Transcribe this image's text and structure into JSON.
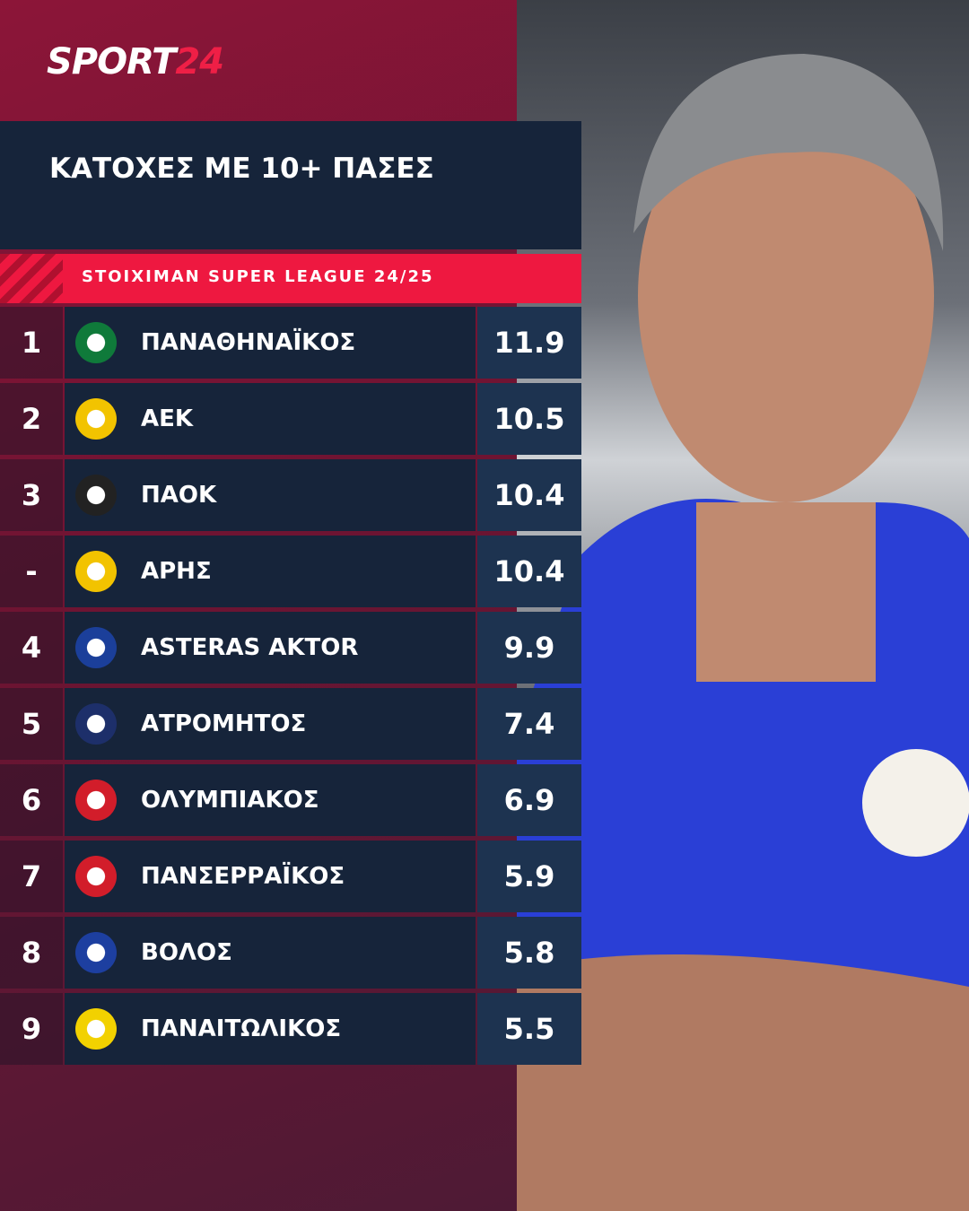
{
  "logo": {
    "main": "SPORT",
    "accent": "24"
  },
  "title": "ΚΑΤΟΧΕΣ ΜΕ 10+ ΠΑΣΕΣ",
  "league": "STOIXIMAN SUPER LEAGUE 24/25",
  "table": {
    "rows": [
      {
        "rank": 1,
        "team": "ΠΑΝΑΘΗΝΑΪΚΟΣ",
        "value": 11.9
      },
      {
        "rank": 2,
        "team": "ΑΕΚ",
        "value": 10.5
      },
      {
        "rank": 3,
        "team": "ΠΑΟΚ",
        "value": 10.4
      },
      {
        "rank": "-",
        "team": "ΑΡΗΣ",
        "value": 10.4
      },
      {
        "rank": 4,
        "team": "ASTERAS AKTOR",
        "value": 9.9
      },
      {
        "rank": 5,
        "team": "ΑΤΡΟΜΗΤΟΣ",
        "value": 7.4
      },
      {
        "rank": 6,
        "team": "ΟΛΥΜΠΙΑΚΟΣ",
        "value": 6.9
      },
      {
        "rank": 7,
        "team": "ΠΑΝΣΕΡΡΑΪΚΟΣ",
        "value": 5.9
      },
      {
        "rank": 8,
        "team": "ΒΟΛΟΣ",
        "value": 5.8
      },
      {
        "rank": 9,
        "team": "ΠΑΝΑΙΤΩΛΙΚΟΣ",
        "value": 5.5
      }
    ]
  }
}
